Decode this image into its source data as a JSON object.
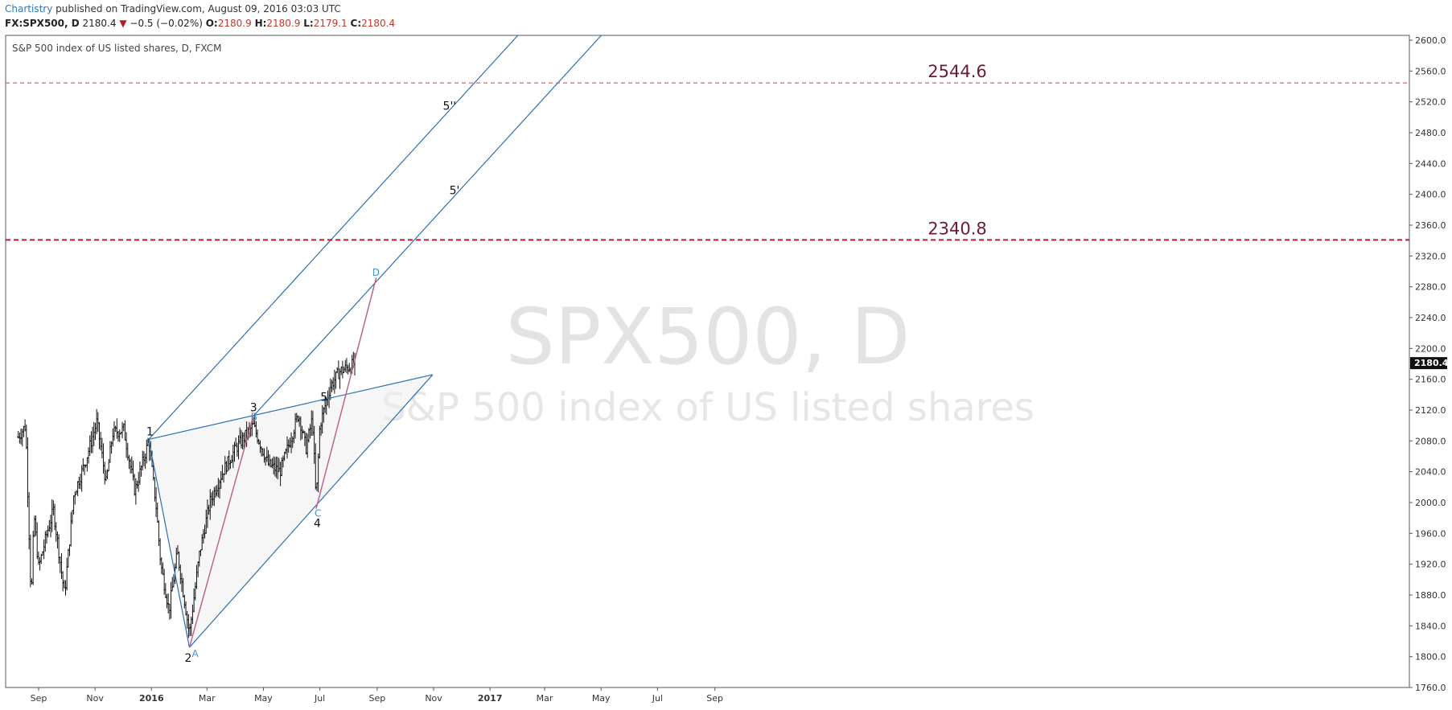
{
  "header": {
    "author": "Chartistry",
    "published_text": "published on TradingView.com, August 09, 2016 03:03 UTC",
    "symbol": "FX:SPX500, D",
    "last": "2180.4",
    "change_arrow": "▼",
    "change": "−0.5 (−0.02%)",
    "open_label": "O:",
    "open": "2180.9",
    "high_label": "H:",
    "high": "2180.9",
    "low_label": "L:",
    "low": "2179.1",
    "close_label": "C:",
    "close": "2180.4"
  },
  "chart_data": {
    "type": "ohlc",
    "title": "S&P 500 index of US listed shares, D, FXCM",
    "watermark_symbol": "SPX500, D",
    "watermark_name": "S&P 500 index of US listed shares",
    "ylim": [
      1760,
      2600
    ],
    "y_ticks": [
      "2600.0",
      "2560.0",
      "2520.0",
      "2480.0",
      "2440.0",
      "2400.0",
      "2360.0",
      "2320.0",
      "2280.0",
      "2240.0",
      "2200.0",
      "2160.0",
      "2120.0",
      "2080.0",
      "2040.0",
      "2000.0",
      "1960.0",
      "1920.0",
      "1880.0",
      "1840.0",
      "1800.0",
      "1760.0"
    ],
    "x_ticks": [
      {
        "label": "Sep",
        "date": "2015-09-01",
        "bold": false
      },
      {
        "label": "Nov",
        "date": "2015-11-01",
        "bold": false
      },
      {
        "label": "2016",
        "date": "2016-01-01",
        "bold": true
      },
      {
        "label": "Mar",
        "date": "2016-03-01",
        "bold": false
      },
      {
        "label": "May",
        "date": "2016-05-01",
        "bold": false
      },
      {
        "label": "Jul",
        "date": "2016-07-01",
        "bold": false
      },
      {
        "label": "Sep",
        "date": "2016-09-01",
        "bold": false
      },
      {
        "label": "Nov",
        "date": "2016-11-01",
        "bold": false
      },
      {
        "label": "2017",
        "date": "2017-01-01",
        "bold": true
      },
      {
        "label": "Mar",
        "date": "2017-03-01",
        "bold": false
      },
      {
        "label": "May",
        "date": "2017-05-01",
        "bold": false
      },
      {
        "label": "Jul",
        "date": "2017-07-01",
        "bold": false
      },
      {
        "label": "Sep",
        "date": "2017-09-01",
        "bold": false
      }
    ],
    "price_path": [
      [
        "2015-08-10",
        2085
      ],
      [
        "2015-08-18",
        2100
      ],
      [
        "2015-08-24",
        1870
      ],
      [
        "2015-08-27",
        1985
      ],
      [
        "2015-09-01",
        1915
      ],
      [
        "2015-09-10",
        1960
      ],
      [
        "2015-09-17",
        1990
      ],
      [
        "2015-09-29",
        1880
      ],
      [
        "2015-10-09",
        2010
      ],
      [
        "2015-10-22",
        2055
      ],
      [
        "2015-11-03",
        2105
      ],
      [
        "2015-11-13",
        2025
      ],
      [
        "2015-11-20",
        2090
      ],
      [
        "2015-12-02",
        2095
      ],
      [
        "2015-12-14",
        2015
      ],
      [
        "2015-12-29",
        2080
      ],
      [
        "2016-01-06",
        1995
      ],
      [
        "2016-01-11",
        1920
      ],
      [
        "2016-01-20",
        1860
      ],
      [
        "2016-01-29",
        1935
      ],
      [
        "2016-02-11",
        1830
      ],
      [
        "2016-02-22",
        1935
      ],
      [
        "2016-03-04",
        2000
      ],
      [
        "2016-03-18",
        2040
      ],
      [
        "2016-04-01",
        2070
      ],
      [
        "2016-04-20",
        2100
      ],
      [
        "2016-05-06",
        2050
      ],
      [
        "2016-05-19",
        2040
      ],
      [
        "2016-06-08",
        2115
      ],
      [
        "2016-06-16",
        2070
      ],
      [
        "2016-06-23",
        2110
      ],
      [
        "2016-06-27",
        2000
      ],
      [
        "2016-07-01",
        2100
      ],
      [
        "2016-07-12",
        2150
      ],
      [
        "2016-07-22",
        2170
      ],
      [
        "2016-08-08",
        2180
      ]
    ],
    "last_price": "2180.4",
    "levels": [
      {
        "value": 2544.6,
        "label": "2544.6",
        "style": "dashed-light",
        "color": "#e06060"
      },
      {
        "value": 2340.8,
        "label": "2340.8",
        "style": "dashed-bold",
        "color": "#c0182b"
      }
    ],
    "pattern": {
      "color": "#2d6fb3",
      "fill": "#efefef",
      "points": {
        "p1": [
          "2015-12-29",
          2082
        ],
        "p2": [
          "2016-02-11",
          1812
        ],
        "p3": [
          "2016-04-20",
          2112
        ],
        "p4": [
          "2016-06-27",
          1992
        ],
        "p5": [
          "2016-07-12",
          2134
        ],
        "D": [
          "2016-08-31",
          2292
        ],
        "rEnd": [
          "2016-10-31",
          2166
        ]
      },
      "wave_labels": [
        {
          "text": "1",
          "at": [
            "2015-12-29",
            2082
          ],
          "dx": -3,
          "dy": -5
        },
        {
          "text": "2",
          "at": [
            "2016-02-11",
            1812
          ],
          "dx": -6,
          "dy": 18
        },
        {
          "text": "3",
          "at": [
            "2016-04-20",
            2112
          ],
          "dx": -4,
          "dy": -6
        },
        {
          "text": "4",
          "at": [
            "2016-06-27",
            1992
          ],
          "dx": -3,
          "dy": 23
        },
        {
          "text": "5",
          "at": [
            "2016-07-12",
            2134
          ],
          "dx": -12,
          "dy": 2
        },
        {
          "text": "5''",
          "at": [
            "2016-11-11",
            2510
          ],
          "dx": 0,
          "dy": 0
        },
        {
          "text": "5'",
          "at": [
            "2016-11-18",
            2400
          ],
          "dx": 0,
          "dy": 0
        }
      ],
      "abcd_labels": [
        {
          "text": "A",
          "at": [
            "2016-02-11",
            1812
          ],
          "dx": 3,
          "dy": 12
        },
        {
          "text": "B",
          "at": [
            "2016-04-20",
            2112
          ],
          "dx": -3,
          "dy": 5
        },
        {
          "text": "C",
          "at": [
            "2016-06-27",
            1992
          ],
          "dx": -2,
          "dy": 10
        },
        {
          "text": "D",
          "at": [
            "2016-08-31",
            2292
          ],
          "dx": -5,
          "dy": -2
        }
      ]
    }
  }
}
